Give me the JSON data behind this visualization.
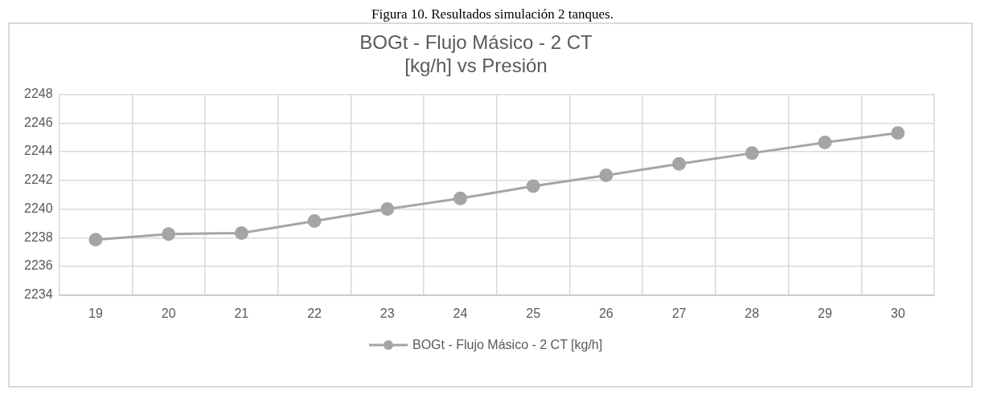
{
  "chart_data": {
    "type": "line",
    "title": "BOGt - Flujo Másico - 2 CT\n[kg/h] vs Presión",
    "annotations": [
      "Figura 10. Resultados simulación 2 tanques."
    ],
    "categories": [
      "19",
      "20",
      "21",
      "22",
      "23",
      "24",
      "25",
      "26",
      "27",
      "28",
      "29",
      "30"
    ],
    "series": [
      {
        "name": "BOGt - Flujo Másico - 2 CT [kg/h]",
        "color": "#a5a5a5",
        "values": [
          2237.86,
          2238.26,
          2238.33,
          2239.17,
          2240.0,
          2240.75,
          2241.6,
          2242.35,
          2243.15,
          2243.9,
          2244.65,
          2245.3
        ]
      }
    ],
    "ylim": [
      2234,
      2248
    ],
    "yticks": [
      2234,
      2236,
      2238,
      2240,
      2242,
      2244,
      2246,
      2248
    ],
    "grid": true,
    "legend": "bottom",
    "marker": "circle",
    "line_style": "solid"
  }
}
